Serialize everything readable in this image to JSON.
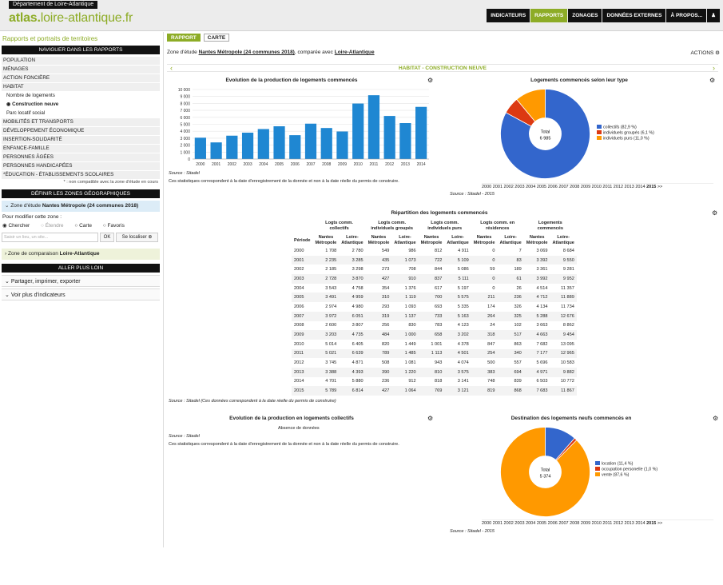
{
  "header": {
    "department": "Département de Loire-Atlantique",
    "logo_bold": "atlas.",
    "logo_rest": "loire-atlantique.fr",
    "nav": [
      "INDICATEURS",
      "RAPPORTS",
      "ZONAGES",
      "DONNÉES EXTERNES",
      "À PROPOS..."
    ],
    "nav_active": "RAPPORTS"
  },
  "sidebar": {
    "title": "Rapports et portraits de territoires",
    "nav_header": "NAVIGUER DANS LES RAPPORTS",
    "items_top": [
      "POPULATION",
      "MÉNAGES",
      "ACTION FONCIÈRE",
      "HABITAT"
    ],
    "sub": [
      "Nombre de logements",
      "Construction neuve",
      "Parc locatif social"
    ],
    "items_bottom": [
      "MOBILITÉS ET TRANSPORTS",
      "DÉVELOPPEMENT ÉCONOMIQUE",
      "INSERTION-SOLIDARITÉ",
      "ENFANCE-FAMILLE",
      "PERSONNES ÂGÉES",
      "PERSONNES HANDICAPÉES",
      "*ÉDUCATION - ÉTABLISSEMENTS SCOLAIRES"
    ],
    "note": "* : non compatible avec la zone d'étude en cours",
    "zones_header": "DÉFINIR LES ZONES GÉOGRAPHIQUES",
    "study_zone_label": "Zone d'étude",
    "study_zone_value": "Nantes Métropole (24 communes 2018)",
    "modify_label": "Pour modifier cette zone :",
    "radios": [
      "Chercher",
      "Étendre",
      "Carte",
      "Favoris"
    ],
    "search_placeholder": "Saisir un lieu, un site...",
    "ok_label": "OK",
    "locate_label": "Se localiser",
    "compare_zone_label": "Zone de comparaison",
    "compare_zone_value": "Loire-Atlantique",
    "further_header": "ALLER PLUS LOIN",
    "share_label": "Partager, imprimer, exporter",
    "more_label": "Voir plus d'indicateurs"
  },
  "main": {
    "tabs": [
      "RAPPORT",
      "CARTE"
    ],
    "zone_prefix": "Zone d'étude",
    "zone_name": "Nantes Métropole (24 communes 2018)",
    "zone_mid": ", comparée avec",
    "zone_compare": "Loire-Atlantique",
    "actions_label": "ACTIONS",
    "section_title": "HABITAT - CONSTRUCTION NEUVE",
    "chart1_title": "Evolution de la production de logements commencés",
    "chart1_source": "Source : Sitadel",
    "chart1_note": "Ces statistiques correspondent à la date d'enregistrement de la donnée et non à la date réelle du permis de construire.",
    "chart2_title": "Logements commencés selon leur type",
    "chart2_years": [
      "2000",
      "2001",
      "2002",
      "2003",
      "2004",
      "2005",
      "2006",
      "2007",
      "2008",
      "2009",
      "2010",
      "2011",
      "2012",
      "2013",
      "2014"
    ],
    "chart2_year_sel": "2015",
    "chart2_more": ">>",
    "chart2_source": "Source : Sitadel - 2015",
    "table_title": "Répartition des logements commencés",
    "table_source": "Source : Sitadel (Ces données correspondent à la date réelle du permis de construire)",
    "chart3_title": "Evolution de la production en logements collectifs",
    "chart3_empty": "Absence de données",
    "chart3_source": "Source : Sitadel",
    "chart3_note": "Ces statistiques correspondent à la date d'enregistrement de la donnée et non à la date réelle du permis de construire.",
    "chart4_title": "Destination des logements neufs commencés en",
    "chart4_source": "Source : Sitadel - 2015"
  },
  "table": {
    "groups": [
      "Logts comm. collectifs",
      "Logts comm. individuels groupés",
      "Logts comm. individuels purs",
      "Logts comm. en résidences",
      "Logements commencés"
    ],
    "period_label": "Période",
    "sub": [
      "Nantes Métropole",
      "Loire-Atlantique"
    ],
    "rows": [
      [
        "2000",
        "1 708",
        "2 780",
        "549",
        "986",
        "812",
        "4 911",
        "0",
        "7",
        "3 069",
        "8 684"
      ],
      [
        "2001",
        "2 235",
        "3 285",
        "435",
        "1 073",
        "722",
        "5 109",
        "0",
        "83",
        "3 392",
        "9 550"
      ],
      [
        "2002",
        "2 185",
        "3 298",
        "273",
        "708",
        "844",
        "5 086",
        "59",
        "189",
        "3 361",
        "9 281"
      ],
      [
        "2003",
        "2 728",
        "3 870",
        "427",
        "910",
        "837",
        "5 111",
        "0",
        "61",
        "3 992",
        "9 952"
      ],
      [
        "2004",
        "3 543",
        "4 758",
        "354",
        "1 376",
        "617",
        "5 197",
        "0",
        "26",
        "4 514",
        "11 357"
      ],
      [
        "2005",
        "3 491",
        "4 959",
        "310",
        "1 119",
        "700",
        "5 575",
        "211",
        "236",
        "4 712",
        "11 889"
      ],
      [
        "2006",
        "2 974",
        "4 980",
        "293",
        "1 093",
        "693",
        "5 335",
        "174",
        "326",
        "4 134",
        "11 734"
      ],
      [
        "2007",
        "3 972",
        "6 051",
        "319",
        "1 137",
        "733",
        "5 163",
        "264",
        "325",
        "5 288",
        "12 676"
      ],
      [
        "2008",
        "2 600",
        "3 807",
        "256",
        "830",
        "783",
        "4 123",
        "24",
        "102",
        "3 663",
        "8 862"
      ],
      [
        "2009",
        "3 203",
        "4 735",
        "484",
        "1 000",
        "658",
        "3 202",
        "318",
        "517",
        "4 663",
        "9 454"
      ],
      [
        "2010",
        "5 014",
        "6 405",
        "820",
        "1 449",
        "1 001",
        "4 378",
        "847",
        "863",
        "7 682",
        "13 095"
      ],
      [
        "2011",
        "5 021",
        "6 639",
        "789",
        "1 485",
        "1 113",
        "4 501",
        "254",
        "340",
        "7 177",
        "12 965"
      ],
      [
        "2012",
        "3 745",
        "4 871",
        "508",
        "1 081",
        "943",
        "4 074",
        "500",
        "557",
        "5 696",
        "10 583"
      ],
      [
        "2013",
        "3 388",
        "4 393",
        "390",
        "1 220",
        "810",
        "3 575",
        "383",
        "694",
        "4 971",
        "9 882"
      ],
      [
        "2014",
        "4 701",
        "5 880",
        "236",
        "912",
        "818",
        "3 141",
        "748",
        "839",
        "6 503",
        "10 772"
      ],
      [
        "2015",
        "5 789",
        "6 814",
        "427",
        "1 064",
        "769",
        "3 121",
        "819",
        "868",
        "7 683",
        "11 867"
      ]
    ]
  },
  "chart_data": [
    {
      "type": "bar",
      "title": "Evolution de la production de logements commencés",
      "categories": [
        "2000",
        "2001",
        "2002",
        "2003",
        "2004",
        "2005",
        "2006",
        "2007",
        "2008",
        "2009",
        "2010",
        "2011",
        "2012",
        "2013",
        "2014"
      ],
      "values": [
        3069,
        2392,
        3361,
        3792,
        4314,
        4712,
        3434,
        5088,
        4463,
        3963,
        7982,
        9177,
        6196,
        5171,
        7503
      ],
      "ylim": [
        0,
        10000
      ],
      "yticks": [
        "0",
        "1 000",
        "2 000",
        "3 000",
        "4 000",
        "5 000",
        "6 000",
        "7 000",
        "8 000",
        "9 000",
        "10 000"
      ],
      "color": "#1f87d2",
      "grid": true
    },
    {
      "type": "pie",
      "title": "Logements commencés selon leur type",
      "total_label": "Total",
      "total": "6 985",
      "slices": [
        {
          "label": "collectifs (82,9 %)",
          "value": 82.9,
          "color": "#3366cc"
        },
        {
          "label": "individuels groupés (6,1 %)",
          "value": 6.1,
          "color": "#dc3912"
        },
        {
          "label": "individuels purs (11,0 %)",
          "value": 11.0,
          "color": "#ff9900"
        }
      ]
    },
    {
      "type": "pie",
      "title": "Destination des logements neufs commencés en",
      "total_label": "Total",
      "total": "5 374",
      "slices": [
        {
          "label": "location (11,4 %)",
          "value": 11.4,
          "color": "#3366cc"
        },
        {
          "label": "occupation personelle (1,0 %)",
          "value": 1.0,
          "color": "#dc3912"
        },
        {
          "label": "vente (87,6 %)",
          "value": 87.6,
          "color": "#ff9900"
        }
      ]
    }
  ]
}
